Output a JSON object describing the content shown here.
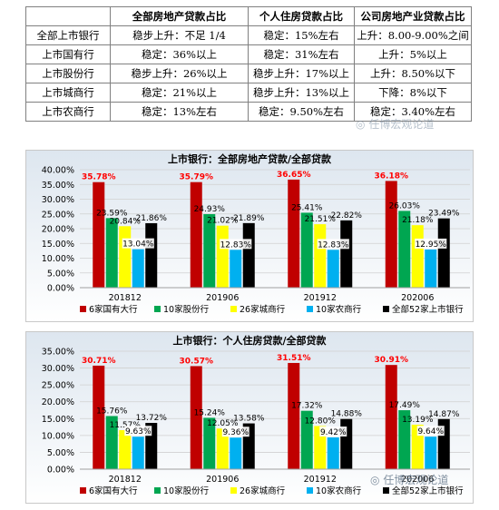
{
  "table": {
    "corner": "",
    "columns": [
      "全部房地产贷款占比",
      "个人住房贷款占比",
      "公司房地产业贷款占比"
    ],
    "rows": [
      {
        "name": "全部上市银行",
        "cells": [
          "稳步上升：不足 1/4",
          "稳定：15%左右",
          "上升：8.00-9.00%之间"
        ]
      },
      {
        "name": "上市国有行",
        "cells": [
          "稳定：36%以上",
          "稳定：31%左右",
          "上升：5%以上"
        ]
      },
      {
        "name": "上市股份行",
        "cells": [
          "稳步上升：26%以上",
          "稳步上升：17%以上",
          "上升：8.50%以下"
        ]
      },
      {
        "name": "上市城商行",
        "cells": [
          "稳定：21%以上",
          "稳步上升：13%以上",
          "下降：8%以下"
        ]
      },
      {
        "name": "上市农商行",
        "cells": [
          "稳定：13%左右",
          "稳定：9.50%左右",
          "稳定：3.40%左右"
        ]
      }
    ]
  },
  "colors": {
    "series": [
      "#c00000",
      "#00a651",
      "#ffff00",
      "#00b0f0",
      "#000000"
    ],
    "highlight_label": "#ff0000",
    "plot_top": "#dde6ef",
    "plot_bottom": "#ffffff"
  },
  "chart_data": [
    {
      "type": "bar",
      "title": "上市银行：全部房地产贷款/全部贷款",
      "categories": [
        "201812",
        "201906",
        "201912",
        "202006"
      ],
      "ylim": [
        0,
        40
      ],
      "yticks": [
        "0.00%",
        "5.00%",
        "10.00%",
        "15.00%",
        "20.00%",
        "25.00%",
        "30.00%",
        "35.00%",
        "40.00%"
      ],
      "grid": true,
      "legend": "bottom",
      "series": [
        {
          "name": "6家国有大行",
          "values": [
            35.78,
            35.79,
            36.65,
            36.18
          ],
          "labels": [
            "35.78%",
            "35.79%",
            "36.65%",
            "36.18%"
          ]
        },
        {
          "name": "10家股份行",
          "values": [
            23.59,
            24.93,
            25.41,
            26.03
          ],
          "labels": [
            "23.59%",
            "24.93%",
            "25.41%",
            "26.03%"
          ]
        },
        {
          "name": "26家城商行",
          "values": [
            20.84,
            21.02,
            21.51,
            21.18
          ],
          "labels": [
            "20.84%",
            "21.02%",
            "21.51%",
            "21.18%"
          ]
        },
        {
          "name": "10家农商行",
          "values": [
            13.04,
            12.83,
            12.83,
            12.95
          ],
          "labels": [
            "13.04%",
            "12.83%",
            "12.83%",
            "12.95%"
          ]
        },
        {
          "name": "全部52家上市银行",
          "values": [
            21.86,
            21.89,
            22.82,
            23.49
          ],
          "labels": [
            "21.86%",
            "21.89%",
            "22.82%",
            "23.49%"
          ]
        }
      ]
    },
    {
      "type": "bar",
      "title": "上市银行：个人住房贷款/全部贷款",
      "categories": [
        "201812",
        "201906",
        "201912",
        "202006"
      ],
      "ylim": [
        0,
        35
      ],
      "yticks": [
        "0.00%",
        "5.00%",
        "10.00%",
        "15.00%",
        "20.00%",
        "25.00%",
        "30.00%",
        "35.00%"
      ],
      "grid": true,
      "legend": "bottom",
      "series": [
        {
          "name": "6家国有大行",
          "values": [
            30.71,
            30.57,
            31.51,
            30.91
          ],
          "labels": [
            "30.71%",
            "30.57%",
            "31.51%",
            "30.91%"
          ]
        },
        {
          "name": "10家股份行",
          "values": [
            15.76,
            15.24,
            17.32,
            17.49
          ],
          "labels": [
            "15.76%",
            "15.24%",
            "17.32%",
            "17.49%"
          ]
        },
        {
          "name": "26家城商行",
          "values": [
            11.57,
            12.05,
            12.8,
            13.19
          ],
          "labels": [
            "11.57%",
            "12.05%",
            "12.80%",
            "13.19%"
          ]
        },
        {
          "name": "10家农商行",
          "values": [
            9.63,
            9.36,
            9.42,
            9.64
          ],
          "labels": [
            "9.63%",
            "9.36%",
            "9.42%",
            "9.64%"
          ]
        },
        {
          "name": "全部52家上市银行",
          "values": [
            13.72,
            13.58,
            14.88,
            14.87
          ],
          "labels": [
            "13.72%",
            "13.58%",
            "14.88%",
            "14.87%"
          ]
        }
      ]
    }
  ],
  "watermark": "任博宏观论道",
  "icons": {
    "watermark": "wechat-icon"
  }
}
